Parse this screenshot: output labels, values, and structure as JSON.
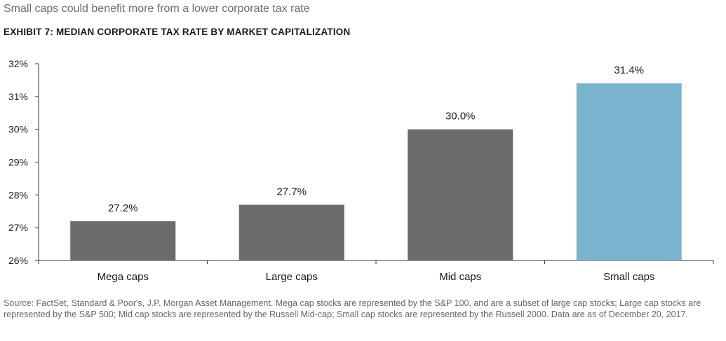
{
  "headline": "Small caps could benefit more from a lower corporate tax rate",
  "chart_data": {
    "type": "bar",
    "title": "EXHIBIT 7: MEDIAN CORPORATE TAX RATE BY MARKET CAPITALIZATION",
    "categories": [
      "Mega caps",
      "Large caps",
      "Mid caps",
      "Small caps"
    ],
    "values": [
      27.2,
      27.7,
      30.0,
      31.4
    ],
    "data_labels": [
      "27.2%",
      "27.7%",
      "30.0%",
      "31.4%"
    ],
    "bar_colors": [
      "#6b6b6b",
      "#6b6b6b",
      "#6b6b6b",
      "#7ab3cd"
    ],
    "ylim": [
      26,
      32
    ],
    "yticks": [
      26,
      27,
      28,
      29,
      30,
      31,
      32
    ],
    "ytick_labels": [
      "26%",
      "27%",
      "28%",
      "29%",
      "30%",
      "31%",
      "32%"
    ],
    "xlabel": "",
    "ylabel": "",
    "grid": false,
    "legend": "none"
  },
  "source_note": "Source: FactSet, Standard & Poor's, J.P. Morgan Asset Management. Mega cap stocks are represented by the S&P 100, and are a subset of large cap stocks; Large cap stocks are represented by the S&P 500; Mid cap stocks are represented by the Russell Mid-cap; Small cap stocks are represented by the Russell 2000. Data are as of December 20, 2017."
}
